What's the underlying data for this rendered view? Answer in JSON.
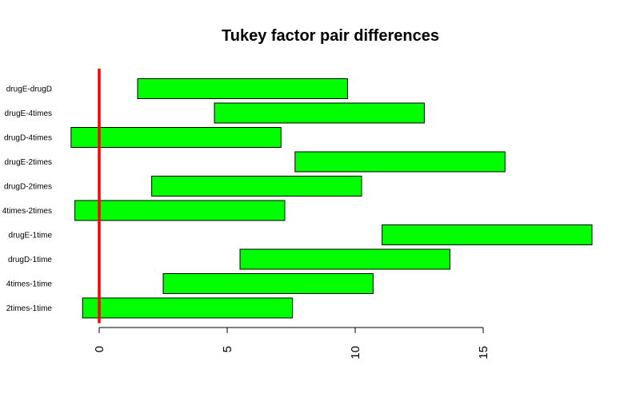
{
  "chart_data": {
    "type": "bar",
    "orientation": "horizontal-interval",
    "title": "Tukey factor pair differences",
    "xlabel": "",
    "ylabel": "",
    "xlim": [
      -1.1,
      19.3
    ],
    "x_ticks": [
      0,
      5,
      10,
      15
    ],
    "x_tick_labels": [
      "0",
      "5",
      "10",
      "15"
    ],
    "reference_line": {
      "x": 0,
      "color": "#ff0000"
    },
    "bar_color": "#00ff00",
    "border_color": "#000000",
    "intervals": [
      {
        "label": "drugE-drugD",
        "lwr": 1.5,
        "upr": 9.7
      },
      {
        "label": "drugE-4times",
        "lwr": 4.5,
        "upr": 12.7
      },
      {
        "label": "drugD-4times",
        "lwr": -1.1,
        "upr": 7.1
      },
      {
        "label": "drugE-2times",
        "lwr": 7.65,
        "upr": 15.85
      },
      {
        "label": "drugD-2times",
        "lwr": 2.05,
        "upr": 10.25
      },
      {
        "label": "4times-2times",
        "lwr": -0.95,
        "upr": 7.25
      },
      {
        "label": "drugE-1time",
        "lwr": 11.05,
        "upr": 19.25
      },
      {
        "label": "drugD-1time",
        "lwr": 5.5,
        "upr": 13.7
      },
      {
        "label": "4times-1time",
        "lwr": 2.5,
        "upr": 10.7
      },
      {
        "label": "2times-1time",
        "lwr": -0.65,
        "upr": 7.55
      }
    ]
  }
}
